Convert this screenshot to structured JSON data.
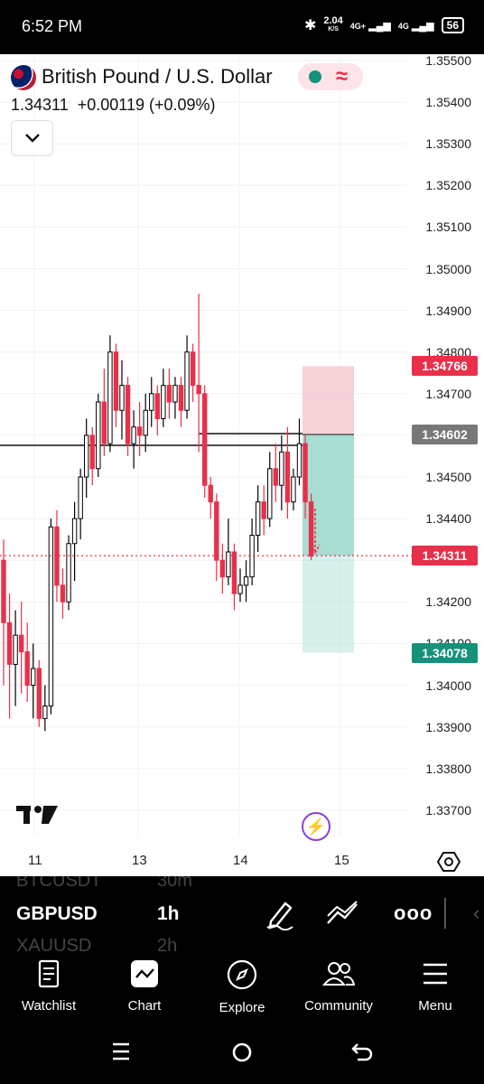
{
  "status_bar": {
    "time": "6:52 PM",
    "net_speed": "2.04",
    "net_unit": "K/S",
    "signal_1": "4G+",
    "signal_2": "4G",
    "battery": "56"
  },
  "chart": {
    "symbol_name": "British Pound / U.S. Dollar",
    "last_price": "1.34311",
    "change": "+0.00119 (+0.09%)",
    "y_axis_labels": [
      "1.35500",
      "1.35400",
      "1.35300",
      "1.35200",
      "1.35100",
      "1.35000",
      "1.34900",
      "1.34800",
      "1.34700",
      "1.34600",
      "1.34500",
      "1.34400",
      "1.34300",
      "1.34200",
      "1.34100",
      "1.34000",
      "1.33900",
      "1.33800",
      "1.33700"
    ],
    "x_axis_labels": [
      "11",
      "13",
      "14",
      "15"
    ],
    "price_tags": {
      "stop_loss": "1.34766",
      "entry": "1.34602",
      "current": "1.34311",
      "take_profit": "1.34078"
    },
    "colors": {
      "up": "#000000",
      "down": "#e8304a",
      "stop_zone": "#f6c9d1",
      "target_zone": "#a8ddd2",
      "current_tag": "#e8304a",
      "stop_tag": "#e8304a",
      "entry_tag": "#787878",
      "target_tag": "#14937a"
    },
    "position": {
      "entry": 1.34602,
      "stop": 1.34766,
      "target": 1.34078,
      "current": 1.34311
    }
  },
  "toolbar": {
    "symbols": [
      "BTCUSDT",
      "GBPUSD",
      "XAUUSD"
    ],
    "timeframes": [
      "30m",
      "1h",
      "2h"
    ]
  },
  "bottom_nav": {
    "items": [
      "Watchlist",
      "Chart",
      "Explore",
      "Community",
      "Menu"
    ]
  }
}
